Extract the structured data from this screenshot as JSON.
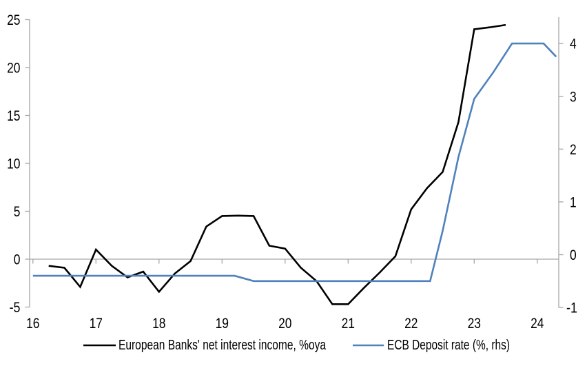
{
  "chart_data": {
    "type": "line",
    "title": "",
    "grid": false,
    "legend_position": "bottom",
    "x_axis": {
      "label": "",
      "ticks": [
        16,
        17,
        18,
        19,
        20,
        21,
        22,
        23,
        24
      ],
      "range": [
        16,
        24.4
      ]
    },
    "left_y_axis": {
      "label": "",
      "ticks": [
        25,
        20,
        15,
        10,
        5,
        0,
        -5
      ],
      "range": [
        -5,
        25
      ]
    },
    "right_y_axis": {
      "label": "",
      "ticks": [
        4,
        3,
        2,
        1,
        0,
        -1
      ],
      "range": [
        -1,
        4.5
      ]
    },
    "series": [
      {
        "name": "European Banks' net interest income, %oya",
        "axis": "left",
        "color": "#000000",
        "x": [
          16.25,
          16.5,
          16.75,
          17,
          17.25,
          17.5,
          17.75,
          18,
          18.25,
          18.5,
          18.75,
          19,
          19.25,
          19.5,
          19.75,
          20,
          20.25,
          20.5,
          20.75,
          21,
          21.25,
          21.5,
          21.75,
          22,
          22.25,
          22.5,
          22.75,
          23,
          23.25,
          23.5
        ],
        "values": [
          -0.7,
          -0.9,
          -2.9,
          1.0,
          -0.7,
          -1.9,
          -1.3,
          -3.4,
          -1.5,
          -0.2,
          3.4,
          4.5,
          4.55,
          4.5,
          1.4,
          1.1,
          -0.9,
          -2.3,
          -4.7,
          -4.7,
          -3.0,
          -1.4,
          0.3,
          5.2,
          7.4,
          9.1,
          14.3,
          24.0,
          24.2,
          24.45
        ]
      },
      {
        "name": "ECB Deposit rate (%, rhs)",
        "axis": "right",
        "color": "#4f81bd",
        "x": [
          16,
          19.2,
          19.5,
          22.3,
          22.5,
          22.75,
          23,
          23.3,
          23.6,
          24.1,
          24.3
        ],
        "values": [
          -0.4,
          -0.4,
          -0.5,
          -0.5,
          0.45,
          1.85,
          2.95,
          3.45,
          4.0,
          4.0,
          3.75
        ]
      }
    ]
  },
  "colors": {
    "background": "#ffffff",
    "axis_line": "#a6a6a6",
    "text": "#000000"
  }
}
